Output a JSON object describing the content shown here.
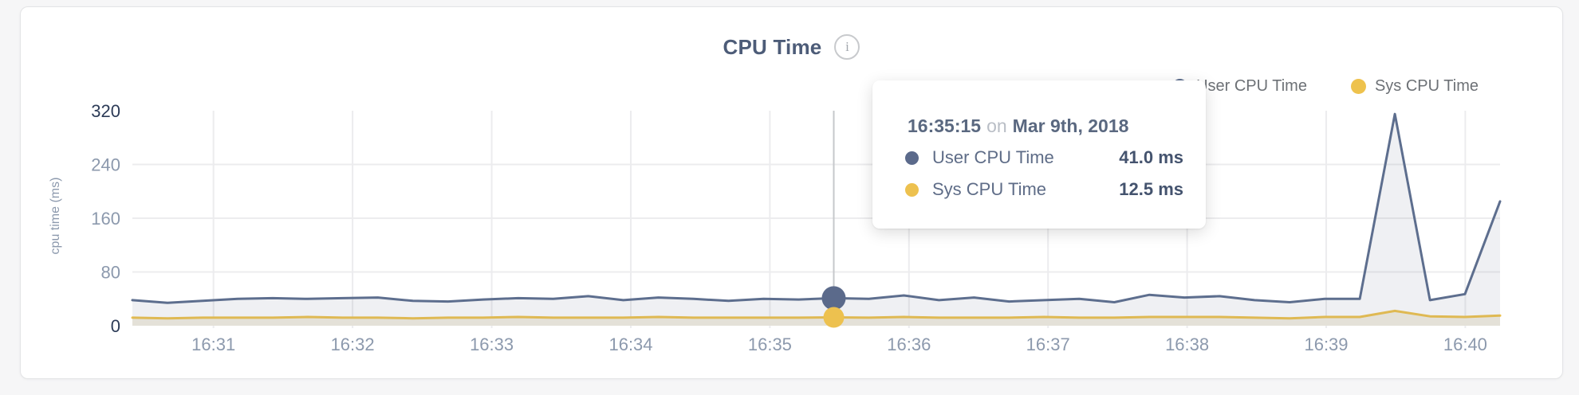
{
  "header": {
    "title": "CPU Time",
    "info_glyph": "i"
  },
  "legend": {
    "items": [
      {
        "label": "User CPU Time",
        "color": "#5d6e8e"
      },
      {
        "label": "Sys CPU Time",
        "color": "#eec24d"
      }
    ]
  },
  "tooltip": {
    "time": "16:35:15",
    "conjunction": "on",
    "date": "Mar 9th, 2018",
    "rows": [
      {
        "label": "User CPU Time",
        "value": "41.0 ms",
        "color": "#5b6a8b"
      },
      {
        "label": "Sys CPU Time",
        "value": "12.5 ms",
        "color": "#edc14f"
      }
    ]
  },
  "chart_data": {
    "type": "area",
    "title": "CPU Time",
    "xlabel": "",
    "ylabel": "cpu time (ms)",
    "ylim": [
      0,
      320
    ],
    "yticks": [
      0,
      80,
      160,
      240,
      320
    ],
    "emphasized_yticks": [
      0,
      320
    ],
    "grid": true,
    "legend_position": "top-right",
    "x_domain_seconds_after_1630": [
      25,
      615
    ],
    "point_interval_seconds": 15,
    "xticks": [
      {
        "seconds": 60,
        "label": "16:31"
      },
      {
        "seconds": 120,
        "label": "16:32"
      },
      {
        "seconds": 180,
        "label": "16:33"
      },
      {
        "seconds": 240,
        "label": "16:34"
      },
      {
        "seconds": 300,
        "label": "16:35"
      },
      {
        "seconds": 360,
        "label": "16:36"
      },
      {
        "seconds": 420,
        "label": "16:37"
      },
      {
        "seconds": 480,
        "label": "16:38"
      },
      {
        "seconds": 540,
        "label": "16:39"
      },
      {
        "seconds": 600,
        "label": "16:40"
      }
    ],
    "series": [
      {
        "name": "Sys CPU Time",
        "color": "#eec24d",
        "fill": "#f3efe1",
        "values": [
          12,
          11,
          12,
          12,
          12,
          13,
          12,
          12,
          11,
          12,
          12,
          13,
          12,
          12,
          12,
          13,
          12,
          12,
          12,
          12,
          12.5,
          12,
          13,
          12,
          12,
          12,
          13,
          12,
          12,
          13,
          13,
          13,
          12,
          11,
          13,
          13,
          22,
          14,
          13,
          15
        ]
      },
      {
        "name": "User CPU Time",
        "color": "#5d6e8e",
        "fill": "rgba(96,111,140,0.10)",
        "values": [
          38,
          34,
          37,
          40,
          41,
          40,
          41,
          42,
          37,
          36,
          39,
          41,
          40,
          44,
          38,
          42,
          40,
          37,
          40,
          39,
          41,
          40,
          45,
          38,
          42,
          36,
          38,
          40,
          35,
          46,
          42,
          44,
          38,
          35,
          40,
          40,
          315,
          38,
          47,
          185
        ]
      }
    ],
    "crosshair": {
      "point_index": 20,
      "time": "16:35:15",
      "user_value_ms": 41.0,
      "sys_value_ms": 12.5,
      "line_color": "#c6c8cb"
    },
    "colors": {
      "grid": "#ececee",
      "tick_label": "#8c99ad",
      "tick_label_emphasized": "#2c3b57",
      "axis_title": "#8c99ad"
    }
  }
}
